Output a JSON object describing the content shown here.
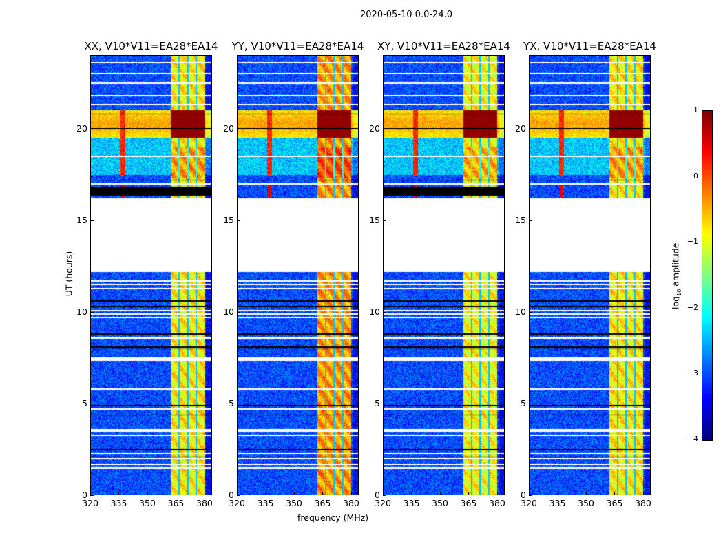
{
  "suptitle": "2020-05-10 0.0-24.0",
  "chart_data": {
    "type": "heatmap",
    "title": "2020-05-10 0.0-24.0",
    "xlabel": "frequency (MHz)",
    "ylabel": "UT (hours)",
    "xlim": [
      320,
      384
    ],
    "ylim": [
      0,
      24
    ],
    "xticks": [
      "320",
      "335",
      "350",
      "365",
      "380"
    ],
    "yticks": [
      "0",
      "5",
      "10",
      "15",
      "20"
    ],
    "panels": [
      {
        "title": "XX, V10*V11=EA28*EA14",
        "black_band": true,
        "band_level": -0.8
      },
      {
        "title": "YY, V10*V11=EA28*EA14",
        "black_band": false,
        "band_level": -0.4
      },
      {
        "title": "XY, V10*V11=EA28*EA14",
        "black_band": true,
        "band_level": -0.9
      },
      {
        "title": "YX, V10*V11=EA28*EA14",
        "black_band": false,
        "band_level": -0.8
      }
    ],
    "rfi_band_mhz": [
      362,
      380
    ],
    "flagged_hours": [
      [
        12.2,
        16.2
      ]
    ],
    "colorbar": {
      "label": "log10 amplitude",
      "label_main": "log",
      "label_sub": "10",
      "label_rest": " amplitude",
      "range": [
        -4,
        1
      ],
      "ticks": [
        "1",
        "0",
        "−1",
        "−2",
        "−3",
        "−4"
      ],
      "colormap": "jet"
    }
  }
}
